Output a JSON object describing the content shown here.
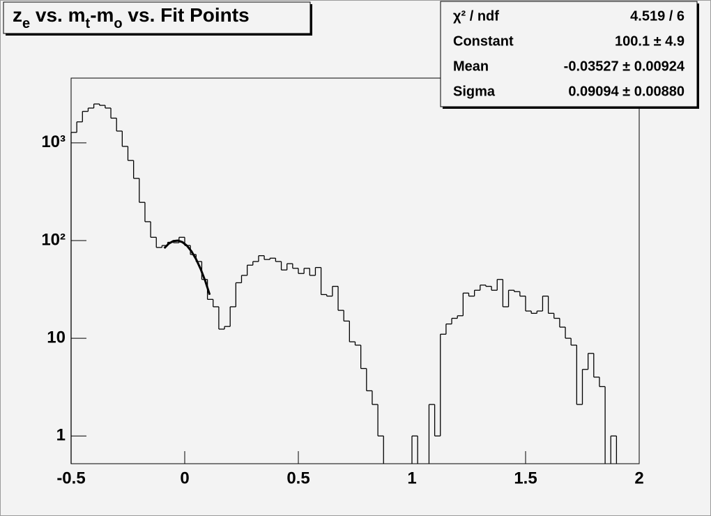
{
  "chart_data": {
    "type": "histogram",
    "title": [
      {
        "text": "z"
      },
      {
        "text": "e",
        "sub": true
      },
      {
        "text": " vs. m"
      },
      {
        "text": "t",
        "sub": true
      },
      {
        "text": "-m"
      },
      {
        "text": "o",
        "sub": true
      },
      {
        "text": " vs. Fit Points"
      }
    ],
    "bins": [
      -0.5,
      -0.475,
      -0.45,
      -0.425,
      -0.4,
      -0.375,
      -0.35,
      -0.325,
      -0.3,
      -0.275,
      -0.25,
      -0.225,
      -0.2,
      -0.175,
      -0.15,
      -0.125,
      -0.1,
      -0.075,
      -0.05,
      -0.025,
      0,
      0.025,
      0.05,
      0.075,
      0.1,
      0.125,
      0.15,
      0.175,
      0.2,
      0.225,
      0.25,
      0.275,
      0.3,
      0.325,
      0.35,
      0.375,
      0.4,
      0.425,
      0.45,
      0.475,
      0.5,
      0.525,
      0.55,
      0.575,
      0.6,
      0.625,
      0.65,
      0.675,
      0.7,
      0.725,
      0.75,
      0.775,
      0.8,
      0.825,
      0.85,
      0.875,
      0.9,
      0.925,
      0.95,
      0.975,
      1,
      1.025,
      1.05,
      1.075,
      1.1,
      1.125,
      1.15,
      1.175,
      1.2,
      1.225,
      1.25,
      1.275,
      1.3,
      1.325,
      1.35,
      1.375,
      1.4,
      1.425,
      1.45,
      1.475,
      1.5,
      1.525,
      1.55,
      1.575,
      1.6,
      1.625,
      1.65,
      1.675,
      1.7,
      1.725,
      1.75,
      1.775,
      1.8,
      1.825,
      1.85,
      1.875,
      1.9,
      1.925,
      1.95,
      1.975,
      2
    ],
    "values": [
      1280,
      1640,
      2100,
      2270,
      2500,
      2420,
      2270,
      1790,
      1320,
      920,
      660,
      433,
      246,
      156,
      108,
      85,
      89,
      96,
      95,
      108,
      89,
      72,
      61,
      40,
      25,
      21,
      12.4,
      13.2,
      21,
      37,
      44,
      56,
      61,
      70,
      64,
      66,
      61,
      50,
      58,
      52,
      46,
      52,
      44,
      53,
      28,
      27,
      34,
      19.3,
      15,
      9.2,
      8.5,
      4.9,
      2.9,
      2.1,
      1,
      null,
      null,
      null,
      null,
      null,
      1,
      null,
      null,
      2.1,
      1,
      11,
      14,
      16,
      17,
      29,
      27,
      31,
      35,
      34,
      31,
      40,
      21,
      31,
      30,
      27,
      19,
      18,
      19,
      27,
      18,
      16,
      13,
      10,
      8.5,
      2.1,
      4.8,
      7,
      4,
      3.2,
      null,
      1,
      null,
      null,
      null,
      null
    ],
    "color": "#000000",
    "log_y": true,
    "xlim": [
      -0.5,
      2
    ],
    "ylim": [
      0.52,
      4600
    ],
    "xticks": [
      -0.5,
      0,
      0.5,
      1,
      1.5,
      2
    ],
    "yticks": [
      1,
      10,
      {
        "value": 100,
        "label": "10²"
      },
      {
        "value": 1000,
        "label": "10³"
      }
    ],
    "fit": {
      "x": [
        -0.09,
        -0.07,
        -0.05,
        -0.03,
        -0.01,
        0.01,
        0.03,
        0.05,
        0.07,
        0.09,
        0.11
      ],
      "values": [
        83.5,
        93.1,
        98.8,
        99.9,
        96.3,
        88.4,
        77.4,
        64.5,
        51.2,
        38.8,
        27.9
      ],
      "color": "#000000"
    },
    "stats": [
      {
        "label": "χ² / ndf",
        "value": "4.519 / 6"
      },
      {
        "label": "Constant",
        "value": "100.1 ± 4.9"
      },
      {
        "label": "Mean",
        "value": "-0.03527 ± 0.00924"
      },
      {
        "label": "Sigma",
        "value": "0.09094 ± 0.00880"
      }
    ]
  }
}
